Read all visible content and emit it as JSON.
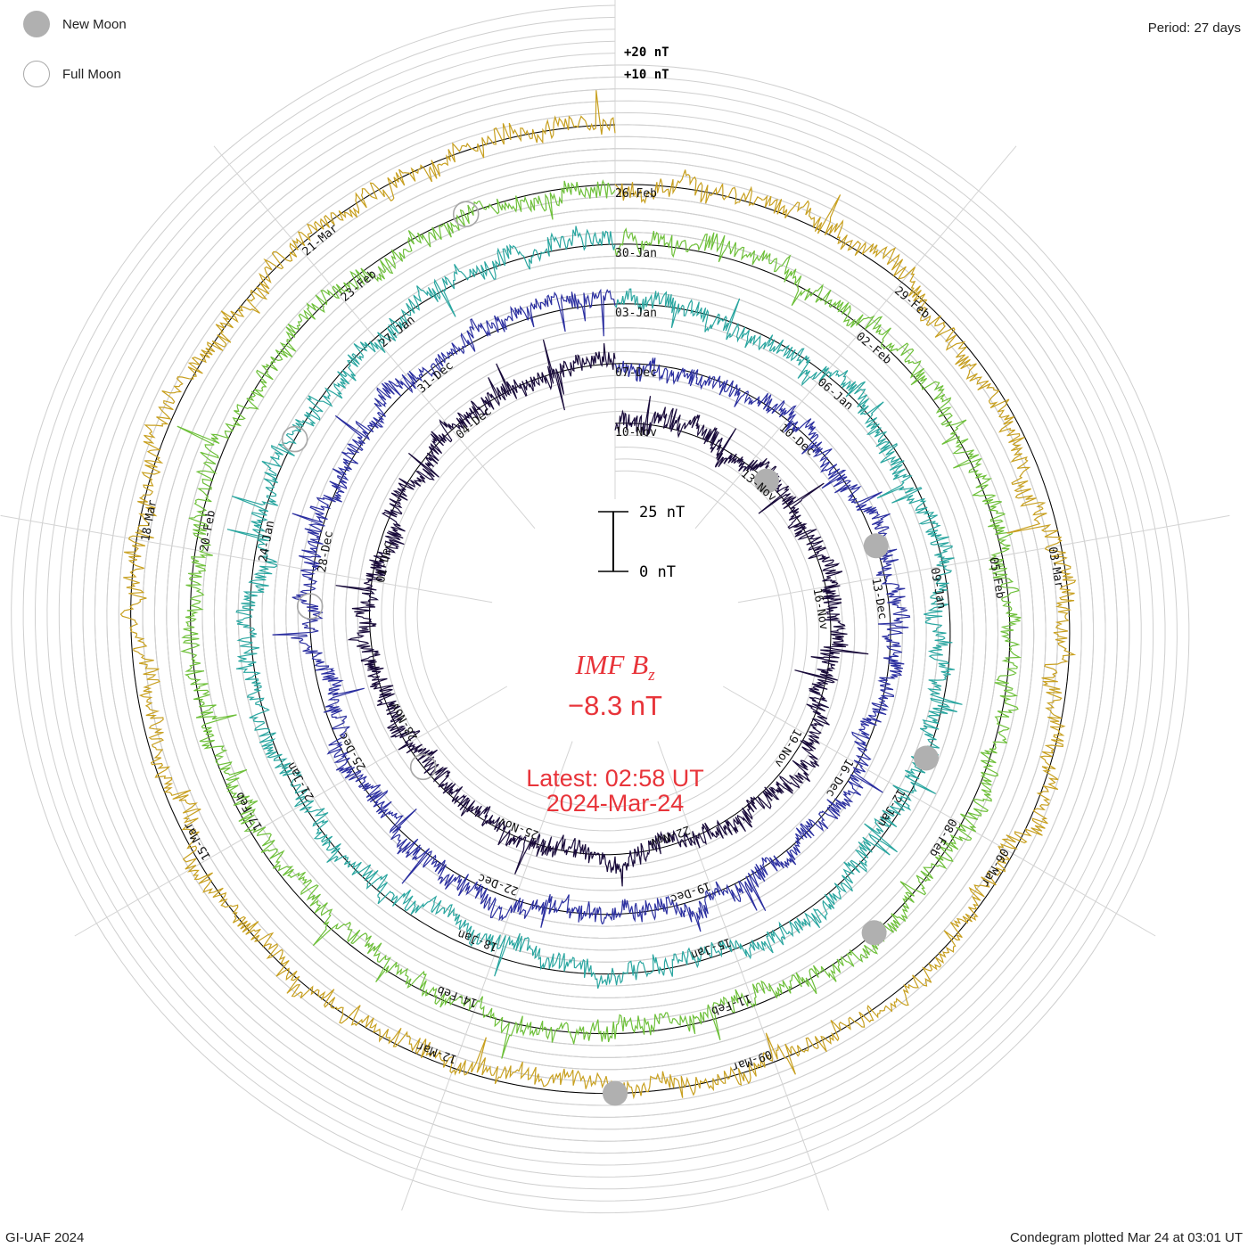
{
  "legend": {
    "new_moon_label": "New Moon",
    "full_moon_label": "Full Moon",
    "new_moon_color": "#b0b0b0",
    "full_moon_color": "#a8a8a8"
  },
  "period_label": "Period: 27 days",
  "footer_left": "GI-UAF 2024",
  "footer_right": "Condegram plotted Mar 24 at 03:01 UT",
  "center": {
    "title": "IMF B",
    "title_subscript": "z",
    "value": "−8.3 nT",
    "latest": "Latest: 02:58 UT",
    "date": "2024-Mar-24",
    "color": "#e8343a"
  },
  "chart_data": {
    "type": "condegram",
    "quantity": "IMF Bz",
    "period_days": 27,
    "scale_bar": {
      "top_label": "25 nT",
      "bottom_label": "0 nT",
      "value_nT": 25
    },
    "reference_labels": [
      "+20 nT",
      "+10 nT"
    ],
    "cycles": [
      {
        "start": "2023-11-10",
        "end": "2023-12-07",
        "color": "#180a3a",
        "date_labels": [
          "10-Nov",
          "13-Nov",
          "16-Nov",
          "19-Nov",
          "22-Nov",
          "25-Nov",
          "28-Nov",
          "01-Dec",
          "04-Dec"
        ]
      },
      {
        "start": "2023-12-07",
        "end": "2024-01-03",
        "color": "#2b2fa0",
        "date_labels": [
          "07-Dec",
          "10-Dec",
          "13-Dec",
          "16-Dec",
          "19-Dec",
          "22-Dec",
          "25-Dec",
          "28-Dec",
          "31-Dec"
        ]
      },
      {
        "start": "2024-01-03",
        "end": "2024-01-30",
        "color": "#2aa6a0",
        "date_labels": [
          "03-Jan",
          "06-Jan",
          "09-Jan",
          "12-Jan",
          "15-Jan",
          "18-Jan",
          "21-Jan",
          "24-Jan",
          "27-Jan"
        ]
      },
      {
        "start": "2024-01-30",
        "end": "2024-02-26",
        "color": "#6ec03a",
        "date_labels": [
          "30-Jan",
          "02-Feb",
          "05-Feb",
          "08-Feb",
          "11-Feb",
          "14-Feb",
          "17-Feb",
          "20-Feb",
          "23-Feb"
        ]
      },
      {
        "start": "2024-02-26",
        "end": "2024-03-24",
        "color": "#c8a020",
        "date_labels": [
          "26-Feb",
          "29-Feb",
          "03-Mar",
          "06-Mar",
          "09-Mar",
          "12-Mar",
          "15-Mar",
          "18-Mar",
          "21-Mar"
        ]
      }
    ],
    "moon_phases": [
      {
        "type": "new",
        "date": "2023-11-13"
      },
      {
        "type": "full",
        "date": "2023-11-27"
      },
      {
        "type": "new",
        "date": "2023-12-12"
      },
      {
        "type": "full",
        "date": "2023-12-27"
      },
      {
        "type": "new",
        "date": "2024-01-11"
      },
      {
        "type": "full",
        "date": "2024-01-25"
      },
      {
        "type": "new",
        "date": "2024-02-09"
      },
      {
        "type": "full",
        "date": "2024-02-24"
      },
      {
        "type": "new",
        "date": "2024-03-10"
      }
    ],
    "latest_value_nT": -8.3
  }
}
